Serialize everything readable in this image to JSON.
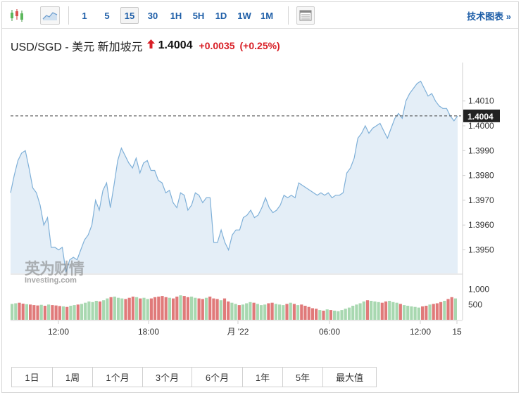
{
  "toolbar": {
    "intervals": [
      {
        "label": "1",
        "active": false
      },
      {
        "label": "5",
        "active": false
      },
      {
        "label": "15",
        "active": true
      },
      {
        "label": "30",
        "active": false
      },
      {
        "label": "1H",
        "active": false
      },
      {
        "label": "5H",
        "active": false
      },
      {
        "label": "1D",
        "active": false
      },
      {
        "label": "1W",
        "active": false
      },
      {
        "label": "1M",
        "active": false
      }
    ],
    "tech_chart_label": "技术图表 »"
  },
  "quote": {
    "symbol": "USD/SGD - 美元 新加坡元",
    "price": "1.4004",
    "change": "+0.0035",
    "change_pct": "(+0.25%)",
    "direction_icon": "up-arrow-icon"
  },
  "watermark": {
    "cn": "英为财情",
    "en": "Investing.com"
  },
  "colors": {
    "line": "#7fb0d8",
    "area": "#e4eef7",
    "up_volume": "#a8d8b0",
    "down_volume": "#e07a7a",
    "price_label_bg": "#222222",
    "change": "#d81f26"
  },
  "chart_data": {
    "type": "area",
    "current_price": 1.4004,
    "current_price_label": "1.4004",
    "y_ticks": [
      "1.4010",
      "1.4000",
      "1.3990",
      "1.3980",
      "1.3970",
      "1.3960",
      "1.3950"
    ],
    "y_tick_values": [
      1.401,
      1.4,
      1.399,
      1.398,
      1.397,
      1.396,
      1.395
    ],
    "ylim": [
      1.39405,
      1.40255
    ],
    "x_ticks": [
      "12:00",
      "18:00",
      "月 '22",
      "06:00",
      "12:00",
      "15"
    ],
    "values": [
      1.3973,
      1.398,
      1.3986,
      1.3989,
      1.399,
      1.3983,
      1.3975,
      1.3973,
      1.3968,
      1.396,
      1.3963,
      1.3951,
      1.3951,
      1.395,
      1.3951,
      1.3941,
      1.3946,
      1.3947,
      1.3946,
      1.395,
      1.3954,
      1.3956,
      1.396,
      1.397,
      1.3966,
      1.3974,
      1.3977,
      1.3967,
      1.3976,
      1.3986,
      1.3991,
      1.3988,
      1.3985,
      1.3983,
      1.3987,
      1.3981,
      1.3985,
      1.3986,
      1.3982,
      1.3982,
      1.3978,
      1.3977,
      1.3973,
      1.3974,
      1.3969,
      1.3967,
      1.3973,
      1.3972,
      1.3966,
      1.3968,
      1.3973,
      1.3972,
      1.3969,
      1.3971,
      1.3971,
      1.3953,
      1.3953,
      1.3958,
      1.3953,
      1.395,
      1.3956,
      1.3958,
      1.3958,
      1.3963,
      1.3964,
      1.3966,
      1.3963,
      1.3964,
      1.3967,
      1.3971,
      1.3967,
      1.3965,
      1.3966,
      1.3968,
      1.3972,
      1.3971,
      1.3972,
      1.3971,
      1.3977,
      1.3976,
      1.3975,
      1.3974,
      1.3973,
      1.3972,
      1.3973,
      1.3972,
      1.3973,
      1.3971,
      1.3972,
      1.3972,
      1.3973,
      1.3981,
      1.3983,
      1.3987,
      1.3995,
      1.3997,
      1.4,
      1.3997,
      1.3999,
      1.4,
      1.4001,
      1.3998,
      1.3995,
      1.3999,
      1.4003,
      1.4005,
      1.4003,
      1.401,
      1.4013,
      1.4015,
      1.4017,
      1.4018,
      1.4015,
      1.4012,
      1.4013,
      1.401,
      1.4008,
      1.4007,
      1.4007,
      1.4004,
      1.4002,
      1.4004
    ],
    "volume_ticks": [
      "1,000",
      "500"
    ],
    "volume_tick_values": [
      1000,
      500
    ],
    "volume_max": 1150,
    "volumes": [
      520,
      540,
      560,
      530,
      510,
      500,
      480,
      470,
      490,
      460,
      500,
      480,
      470,
      450,
      440,
      420,
      460,
      480,
      500,
      520,
      560,
      600,
      580,
      620,
      600,
      640,
      700,
      740,
      760,
      720,
      700,
      680,
      720,
      760,
      740,
      700,
      720,
      680,
      700,
      740,
      760,
      780,
      740,
      720,
      700,
      760,
      800,
      780,
      740,
      760,
      720,
      700,
      680,
      720,
      760,
      700,
      680,
      640,
      700,
      600,
      560,
      520,
      480,
      500,
      540,
      580,
      560,
      520,
      480,
      500,
      540,
      560,
      520,
      500,
      480,
      520,
      560,
      520,
      480,
      500,
      460,
      420,
      380,
      360,
      320,
      300,
      340,
      320,
      300,
      280,
      320,
      360,
      400,
      460,
      500,
      540,
      600,
      640,
      620,
      600,
      580,
      560,
      600,
      620,
      580,
      560,
      520,
      480,
      460,
      440,
      420,
      400,
      440,
      460,
      500,
      520,
      540,
      580,
      620,
      680,
      740,
      700
    ],
    "volume_up": [
      1,
      1,
      0,
      0,
      1,
      0,
      0,
      0,
      1,
      0,
      1,
      0,
      0,
      0,
      1,
      0,
      1,
      1,
      0,
      1,
      1,
      1,
      1,
      1,
      0,
      1,
      1,
      0,
      1,
      1,
      1,
      0,
      0,
      0,
      1,
      0,
      1,
      1,
      0,
      0,
      0,
      0,
      0,
      1,
      0,
      0,
      1,
      0,
      0,
      1,
      1,
      0,
      0,
      1,
      0,
      0,
      0,
      1,
      0,
      0,
      1,
      1,
      0,
      1,
      1,
      1,
      0,
      1,
      1,
      1,
      0,
      0,
      1,
      1,
      1,
      0,
      1,
      0,
      1,
      0,
      0,
      0,
      0,
      0,
      1,
      0,
      1,
      0,
      1,
      1,
      1,
      1,
      1,
      1,
      1,
      1,
      1,
      0,
      1,
      1,
      1,
      0,
      0,
      1,
      1,
      1,
      0,
      1,
      1,
      1,
      1,
      1,
      0,
      0,
      1,
      0,
      0,
      0,
      1,
      0,
      0,
      1
    ]
  },
  "ranges": [
    "1日",
    "1周",
    "1个月",
    "3个月",
    "6个月",
    "1年",
    "5年",
    "最大值"
  ]
}
